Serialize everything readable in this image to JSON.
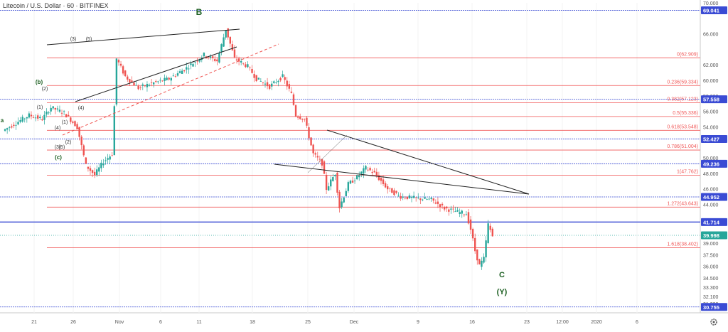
{
  "title": "Litecoin / U.S. Dollar · 60 · BITFINEX",
  "colors": {
    "up": "#26a69a",
    "down": "#ef5350",
    "fib": "#f05656",
    "blue": "#3a4bd4",
    "trend": "#222222",
    "label": "#1b5e20"
  },
  "chart_data": {
    "type": "candlestick",
    "y_axis": {
      "min": 30.0,
      "max": 70.0,
      "ticks": [
        "70.000",
        "66.000",
        "62.000",
        "60.000",
        "58.000",
        "56.000",
        "54.000",
        "50.000",
        "48.000",
        "46.000",
        "44.000",
        "40.000",
        "39.000",
        "37.500",
        "36.000",
        "34.500",
        "33.300",
        "32.100",
        "31.200"
      ]
    },
    "x_axis": {
      "labels": [
        "21",
        "26",
        "Nov",
        "6",
        "11",
        "18",
        "25",
        "Dec",
        "9",
        "16",
        "23",
        "12:00",
        "2020",
        "6"
      ]
    },
    "price_path": [
      [
        0,
        53.5
      ],
      [
        3,
        54.5
      ],
      [
        6,
        55.5
      ],
      [
        9,
        55.0
      ],
      [
        11,
        56.5
      ],
      [
        14,
        55.8
      ],
      [
        17,
        54.0
      ],
      [
        19,
        49.0
      ],
      [
        21,
        47.8
      ],
      [
        23,
        49.5
      ],
      [
        25,
        50.5
      ],
      [
        26,
        62.8
      ],
      [
        28,
        60.5
      ],
      [
        31,
        59.0
      ],
      [
        34,
        59.6
      ],
      [
        38,
        60.2
      ],
      [
        42,
        61.6
      ],
      [
        46,
        63.3
      ],
      [
        49,
        62.5
      ],
      [
        51,
        66.6
      ],
      [
        53,
        62.8
      ],
      [
        56,
        61.8
      ],
      [
        58,
        60.2
      ],
      [
        61,
        59.2
      ],
      [
        64,
        60.5
      ],
      [
        66,
        58.2
      ],
      [
        67,
        55.5
      ],
      [
        69,
        55.0
      ],
      [
        71,
        50.5
      ],
      [
        73,
        49.3
      ],
      [
        74,
        46.0
      ],
      [
        76,
        48.0
      ],
      [
        77,
        43.6
      ],
      [
        79,
        46.6
      ],
      [
        81,
        47.5
      ],
      [
        83,
        48.7
      ],
      [
        85,
        48.0
      ],
      [
        88,
        46.0
      ],
      [
        91,
        45.0
      ],
      [
        94,
        44.8
      ],
      [
        98,
        44.6
      ],
      [
        101,
        43.5
      ],
      [
        104,
        43.0
      ],
      [
        106,
        42.8
      ],
      [
        107,
        40.8
      ],
      [
        108,
        38.0
      ],
      [
        109,
        36.1
      ],
      [
        110,
        37.0
      ],
      [
        111,
        41.4
      ],
      [
        112,
        39.9
      ]
    ],
    "price_levels": [
      {
        "label": "69.041",
        "value": 69.041,
        "color": "blue"
      },
      {
        "label": "57.558",
        "value": 57.558,
        "color": "blue"
      },
      {
        "label": "52.427",
        "value": 52.427,
        "color": "blue"
      },
      {
        "label": "49.236",
        "value": 49.236,
        "color": "blue"
      },
      {
        "label": "44.952",
        "value": 44.952,
        "color": "blue"
      },
      {
        "label": "41.714",
        "value": 41.714,
        "color": "blue"
      },
      {
        "label": "39.998",
        "value": 39.998,
        "color": "up"
      },
      {
        "label": "30.755",
        "value": 30.755,
        "color": "blue"
      }
    ],
    "fib_levels": [
      {
        "label": "0(62.909)",
        "value": 62.909
      },
      {
        "label": "0.236(59.334)",
        "value": 59.334
      },
      {
        "label": "0.382(57.123)",
        "value": 57.123
      },
      {
        "label": "0.5(55.336)",
        "value": 55.336
      },
      {
        "label": "0.618(53.548)",
        "value": 53.548
      },
      {
        "label": "0.786(51.004)",
        "value": 51.004
      },
      {
        "label": "1(47.762)",
        "value": 47.762
      },
      {
        "label": "1.272(43.643)",
        "value": 43.643
      },
      {
        "label": "1.618(38.402)",
        "value": 38.402
      }
    ],
    "wave_labels": [
      "B",
      "(3)",
      "(5)",
      "(b)",
      "(2)",
      "(1)",
      "a",
      "(4)",
      "(4)",
      "(1)",
      "(2)",
      "(3)",
      "(5)",
      "(c)",
      "C",
      "(Y)"
    ]
  }
}
